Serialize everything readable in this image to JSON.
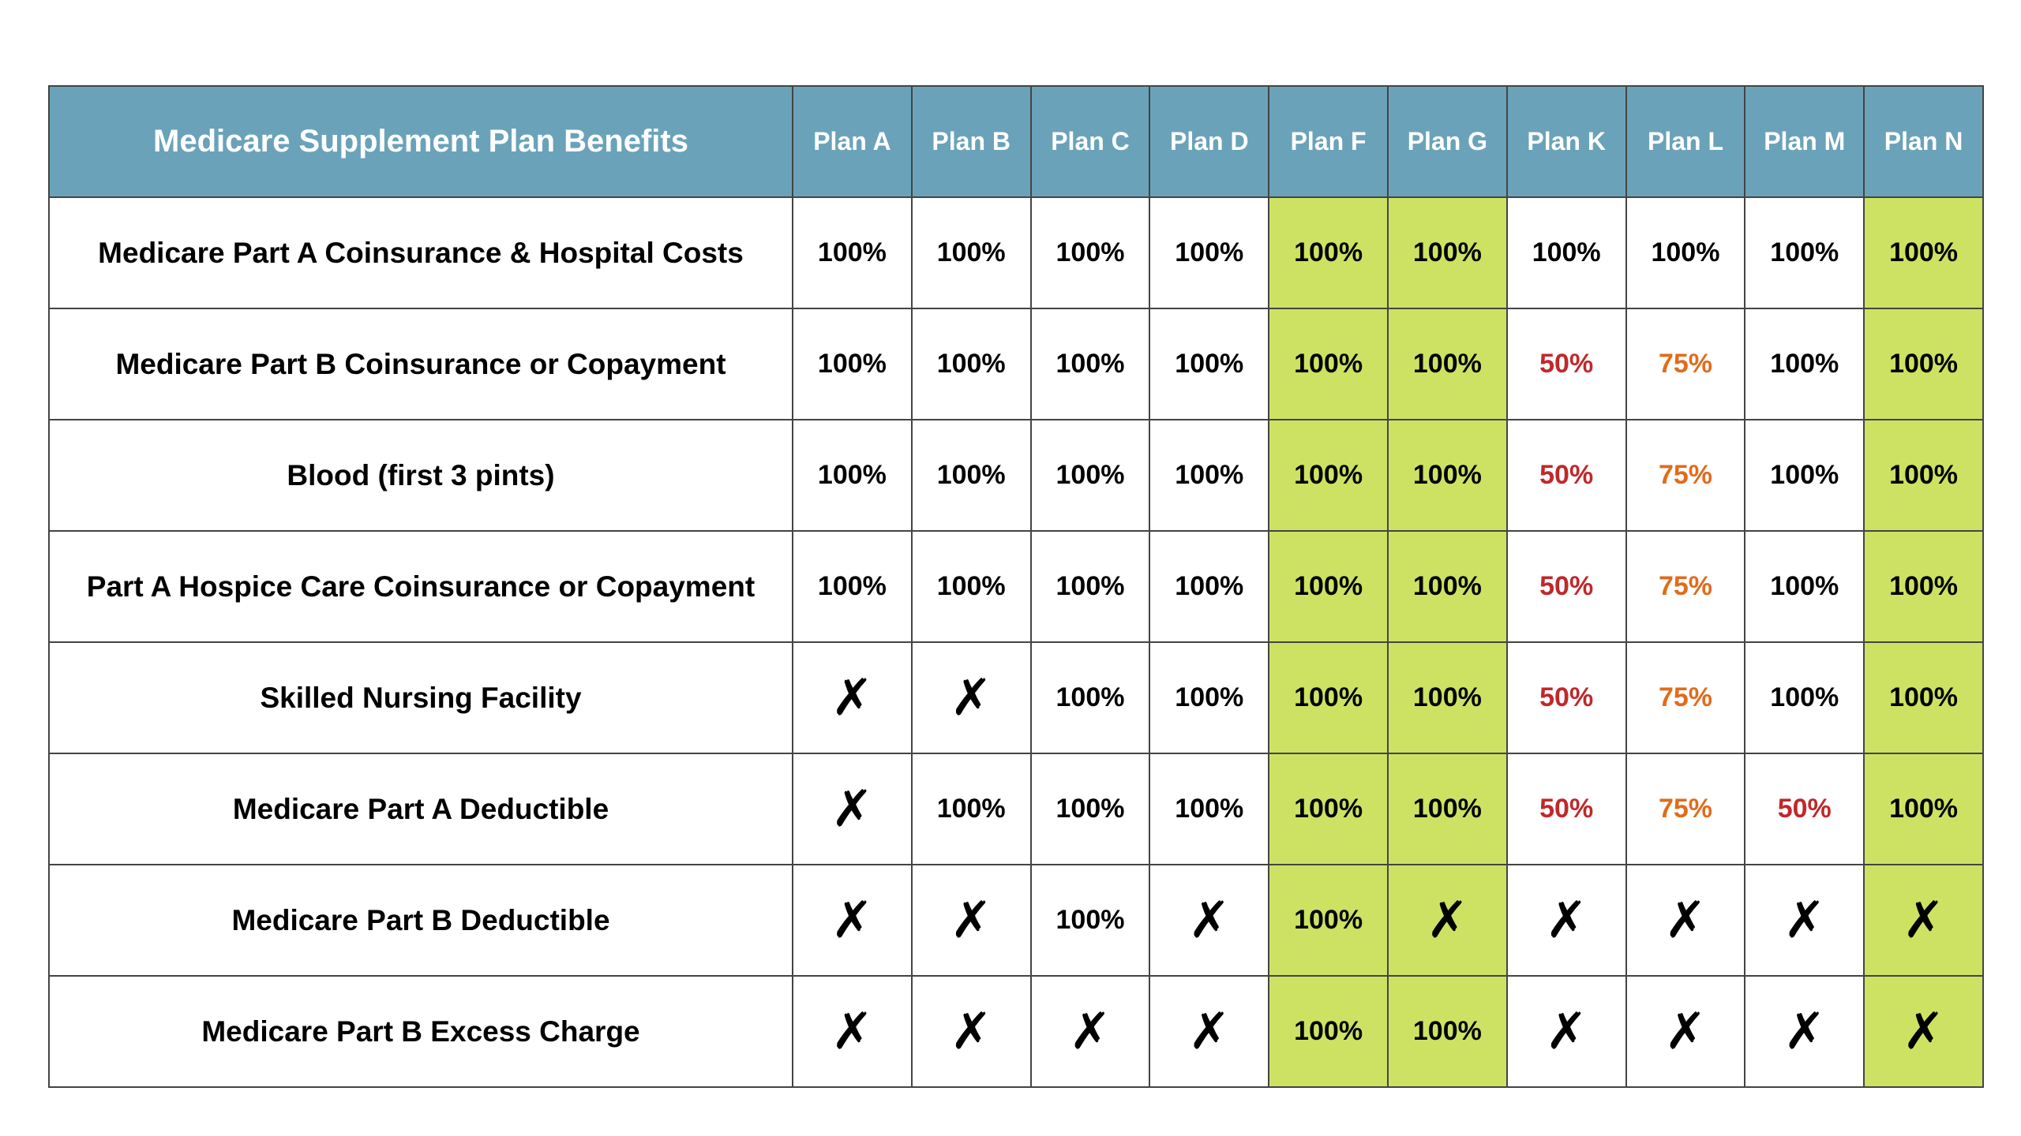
{
  "table": {
    "title": "Medicare Supplement Plan Benefits",
    "plans": [
      {
        "name": "Plan A",
        "highlight": false
      },
      {
        "name": "Plan B",
        "highlight": false
      },
      {
        "name": "Plan C",
        "highlight": false
      },
      {
        "name": "Plan D",
        "highlight": false
      },
      {
        "name": "Plan F",
        "highlight": true
      },
      {
        "name": "Plan G",
        "highlight": true
      },
      {
        "name": "Plan K",
        "highlight": false
      },
      {
        "name": "Plan L",
        "highlight": false
      },
      {
        "name": "Plan M",
        "highlight": false
      },
      {
        "name": "Plan N",
        "highlight": true
      }
    ],
    "value_colors": {
      "50%": "#c0282b",
      "75%": "#e06c1c",
      "✗": "#000000",
      "100%": "#000000"
    },
    "rows": [
      {
        "label": "Medicare Part A Coinsurance & Hospital Costs",
        "cells": [
          "100%",
          "100%",
          "100%",
          "100%",
          "100%",
          "100%",
          "100%",
          "100%",
          "100%",
          "100%"
        ]
      },
      {
        "label": "Medicare Part B Coinsurance or Copayment",
        "cells": [
          "100%",
          "100%",
          "100%",
          "100%",
          "100%",
          "100%",
          "50%",
          "75%",
          "100%",
          "100%"
        ]
      },
      {
        "label": "Blood (first 3 pints)",
        "cells": [
          "100%",
          "100%",
          "100%",
          "100%",
          "100%",
          "100%",
          "50%",
          "75%",
          "100%",
          "100%"
        ]
      },
      {
        "label": "Part A Hospice Care Coinsurance or Copayment",
        "cells": [
          "100%",
          "100%",
          "100%",
          "100%",
          "100%",
          "100%",
          "50%",
          "75%",
          "100%",
          "100%"
        ]
      },
      {
        "label": "Skilled Nursing Facility",
        "cells": [
          "✗",
          "✗",
          "100%",
          "100%",
          "100%",
          "100%",
          "50%",
          "75%",
          "100%",
          "100%"
        ]
      },
      {
        "label": "Medicare Part A Deductible",
        "cells": [
          "✗",
          "100%",
          "100%",
          "100%",
          "100%",
          "100%",
          "50%",
          "75%",
          "50%",
          "100%"
        ]
      },
      {
        "label": "Medicare Part B Deductible",
        "cells": [
          "✗",
          "✗",
          "100%",
          "✗",
          "100%",
          "✗",
          "✗",
          "✗",
          "✗",
          "✗"
        ]
      },
      {
        "label": "Medicare Part B Excess Charge",
        "cells": [
          "✗",
          "✗",
          "✗",
          "✗",
          "100%",
          "100%",
          "✗",
          "✗",
          "✗",
          "✗"
        ]
      }
    ]
  }
}
